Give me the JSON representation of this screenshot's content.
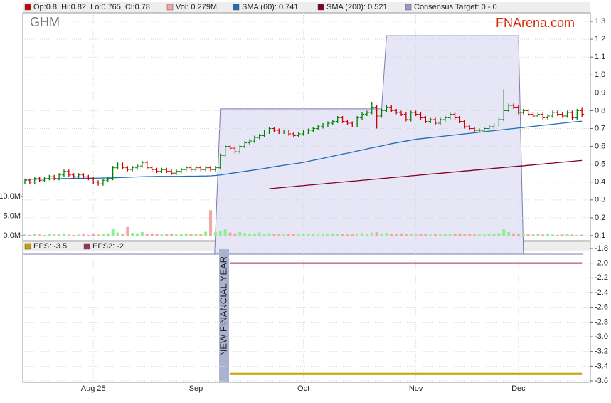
{
  "chart_data": {
    "type": "ohlc",
    "title": "GHM",
    "watermark": "FNArena.com",
    "legend_ohlc": "Op:0.8, Hi:0.82, Lo:0.765, Cl:0.78",
    "up_color": "#008000",
    "down_color": "#cc0000",
    "grid": true,
    "ylim": [
      0.072,
      1.348
    ],
    "yticks": [
      0.1,
      0.2,
      0.3,
      0.4,
      0.5,
      0.6,
      0.7,
      0.8,
      0.9,
      {
        "value": 1,
        "label": "1.0"
      },
      1.1,
      1.2,
      1.3
    ],
    "categories": [
      null,
      null,
      null,
      null,
      null,
      null,
      null,
      null,
      null,
      null,
      null,
      null,
      null,
      null,
      "Aug 25",
      null,
      null,
      null,
      null,
      null,
      null,
      null,
      null,
      null,
      null,
      null,
      null,
      null,
      null,
      null,
      null,
      null,
      null,
      null,
      null,
      "Sep",
      null,
      null,
      null,
      null,
      null,
      null,
      null,
      null,
      null,
      null,
      null,
      null,
      null,
      null,
      null,
      null,
      null,
      null,
      null,
      null,
      null,
      "Oct",
      null,
      null,
      null,
      null,
      null,
      null,
      null,
      null,
      null,
      null,
      null,
      null,
      null,
      null,
      null,
      null,
      null,
      null,
      null,
      null,
      null,
      null,
      "Nov",
      null,
      null,
      null,
      null,
      null,
      null,
      null,
      null,
      null,
      null,
      null,
      null,
      null,
      null,
      null,
      null,
      null,
      null,
      null,
      null,
      "Dec",
      null,
      null,
      null,
      null,
      null,
      null,
      null,
      null,
      null,
      null,
      null,
      null,
      null
    ],
    "open": [
      0.4,
      0.41,
      0.4,
      0.42,
      0.41,
      0.42,
      0.43,
      0.42,
      0.44,
      0.46,
      0.44,
      0.43,
      0.44,
      0.43,
      0.42,
      0.4,
      0.39,
      0.41,
      0.42,
      0.48,
      0.5,
      0.48,
      0.47,
      0.48,
      0.49,
      0.51,
      0.48,
      0.47,
      0.46,
      0.47,
      0.46,
      0.45,
      0.46,
      0.47,
      0.48,
      0.47,
      0.48,
      0.47,
      0.48,
      0.47,
      0.48,
      0.55,
      0.6,
      0.59,
      0.57,
      0.6,
      0.62,
      0.63,
      0.65,
      0.66,
      0.68,
      0.7,
      0.69,
      0.68,
      0.68,
      0.67,
      0.66,
      0.67,
      0.68,
      0.69,
      0.7,
      0.71,
      0.72,
      0.73,
      0.74,
      0.76,
      0.74,
      0.73,
      0.72,
      0.76,
      0.78,
      0.79,
      0.82,
      0.77,
      0.8,
      0.82,
      0.8,
      0.79,
      0.78,
      0.75,
      0.79,
      0.78,
      0.76,
      0.74,
      0.75,
      0.73,
      0.75,
      0.76,
      0.78,
      0.76,
      0.74,
      0.71,
      0.7,
      0.69,
      0.69,
      0.7,
      0.71,
      0.72,
      0.75,
      0.8,
      0.83,
      0.82,
      0.79,
      0.8,
      0.78,
      0.77,
      0.78,
      0.76,
      0.77,
      0.79,
      0.78,
      0.77,
      0.79,
      0.76,
      0.8
    ],
    "high": [
      0.42,
      0.42,
      0.43,
      0.43,
      0.43,
      0.44,
      0.44,
      0.45,
      0.47,
      0.47,
      0.45,
      0.45,
      0.45,
      0.44,
      0.43,
      0.41,
      0.42,
      0.43,
      0.49,
      0.51,
      0.51,
      0.49,
      0.49,
      0.5,
      0.52,
      0.52,
      0.49,
      0.48,
      0.48,
      0.48,
      0.47,
      0.47,
      0.48,
      0.49,
      0.49,
      0.49,
      0.49,
      0.49,
      0.49,
      0.49,
      0.56,
      0.61,
      0.61,
      0.6,
      0.61,
      0.63,
      0.64,
      0.66,
      0.67,
      0.69,
      0.71,
      0.71,
      0.7,
      0.69,
      0.69,
      0.68,
      0.68,
      0.69,
      0.7,
      0.71,
      0.72,
      0.73,
      0.74,
      0.75,
      0.77,
      0.77,
      0.75,
      0.74,
      0.77,
      0.79,
      0.8,
      0.85,
      0.83,
      0.81,
      0.83,
      0.83,
      0.81,
      0.8,
      0.79,
      0.8,
      0.8,
      0.79,
      0.77,
      0.76,
      0.76,
      0.76,
      0.77,
      0.79,
      0.79,
      0.77,
      0.75,
      0.72,
      0.71,
      0.7,
      0.71,
      0.72,
      0.73,
      0.76,
      0.92,
      0.84,
      0.84,
      0.83,
      0.81,
      0.81,
      0.79,
      0.79,
      0.79,
      0.78,
      0.8,
      0.8,
      0.79,
      0.8,
      0.8,
      0.81,
      0.82
    ],
    "low": [
      0.39,
      0.39,
      0.39,
      0.4,
      0.4,
      0.41,
      0.41,
      0.41,
      0.43,
      0.43,
      0.42,
      0.42,
      0.42,
      0.41,
      0.39,
      0.38,
      0.38,
      0.4,
      0.41,
      0.47,
      0.47,
      0.46,
      0.46,
      0.47,
      0.48,
      0.47,
      0.46,
      0.45,
      0.45,
      0.45,
      0.44,
      0.44,
      0.45,
      0.46,
      0.46,
      0.46,
      0.46,
      0.46,
      0.46,
      0.46,
      0.47,
      0.54,
      0.58,
      0.56,
      0.56,
      0.59,
      0.61,
      0.62,
      0.64,
      0.65,
      0.67,
      0.68,
      0.67,
      0.67,
      0.66,
      0.65,
      0.65,
      0.66,
      0.67,
      0.68,
      0.69,
      0.7,
      0.71,
      0.72,
      0.73,
      0.73,
      0.72,
      0.71,
      0.71,
      0.75,
      0.77,
      0.78,
      0.7,
      0.76,
      0.79,
      0.79,
      0.78,
      0.77,
      0.74,
      0.74,
      0.77,
      0.75,
      0.73,
      0.73,
      0.72,
      0.72,
      0.74,
      0.75,
      0.75,
      0.73,
      0.7,
      0.69,
      0.68,
      0.68,
      0.68,
      0.69,
      0.7,
      0.71,
      0.74,
      0.79,
      0.81,
      0.78,
      0.78,
      0.77,
      0.76,
      0.76,
      0.75,
      0.75,
      0.76,
      0.77,
      0.76,
      0.76,
      0.75,
      0.75,
      0.765
    ],
    "close": [
      0.41,
      0.4,
      0.42,
      0.41,
      0.42,
      0.43,
      0.42,
      0.44,
      0.46,
      0.44,
      0.43,
      0.44,
      0.43,
      0.42,
      0.4,
      0.39,
      0.41,
      0.42,
      0.48,
      0.5,
      0.48,
      0.47,
      0.48,
      0.49,
      0.51,
      0.48,
      0.47,
      0.46,
      0.47,
      0.46,
      0.45,
      0.46,
      0.47,
      0.48,
      0.47,
      0.48,
      0.47,
      0.48,
      0.47,
      0.48,
      0.55,
      0.6,
      0.59,
      0.57,
      0.6,
      0.62,
      0.63,
      0.65,
      0.66,
      0.68,
      0.7,
      0.69,
      0.68,
      0.68,
      0.67,
      0.66,
      0.67,
      0.68,
      0.69,
      0.7,
      0.71,
      0.72,
      0.73,
      0.74,
      0.76,
      0.74,
      0.73,
      0.72,
      0.76,
      0.78,
      0.79,
      0.82,
      0.77,
      0.8,
      0.82,
      0.8,
      0.79,
      0.78,
      0.75,
      0.79,
      0.78,
      0.76,
      0.74,
      0.75,
      0.73,
      0.75,
      0.76,
      0.78,
      0.76,
      0.74,
      0.71,
      0.7,
      0.69,
      0.69,
      0.7,
      0.71,
      0.72,
      0.75,
      0.8,
      0.83,
      0.82,
      0.79,
      0.8,
      0.78,
      0.77,
      0.78,
      0.76,
      0.77,
      0.79,
      0.78,
      0.77,
      0.79,
      0.76,
      0.8,
      0.78
    ],
    "volume": {
      "name": "Vol: 0.279M",
      "up_color": "#90ee90",
      "down_color": "#f4a6a6",
      "legend_color": "#f4a6a6",
      "ylim": [
        0,
        10
      ],
      "yticks": [
        {
          "value": 0,
          "label": "0.0M"
        },
        {
          "value": 5,
          "label": "5.0M"
        },
        {
          "value": 10,
          "label": "10.0M"
        }
      ],
      "values": [
        0.3,
        0.2,
        0.4,
        0.3,
        0.2,
        0.5,
        0.3,
        0.4,
        0.6,
        0.3,
        0.2,
        0.3,
        0.4,
        0.2,
        0.5,
        0.3,
        0.4,
        0.6,
        1.8,
        0.8,
        0.5,
        2.2,
        0.7,
        0.6,
        0.9,
        0.5,
        0.6,
        0.4,
        0.3,
        0.5,
        0.4,
        0.3,
        0.4,
        0.6,
        0.5,
        0.4,
        0.5,
        1.0,
        6.5,
        0.9,
        1.3,
        1.6,
        0.8,
        0.6,
        0.9,
        0.7,
        0.5,
        0.6,
        0.8,
        0.5,
        0.6,
        0.4,
        0.5,
        0.3,
        0.4,
        0.5,
        0.3,
        0.4,
        0.5,
        0.4,
        0.3,
        0.5,
        0.4,
        0.6,
        0.5,
        0.4,
        0.3,
        0.5,
        0.6,
        0.7,
        0.5,
        0.8,
        0.9,
        0.6,
        0.7,
        0.5,
        0.4,
        0.6,
        0.5,
        0.4,
        0.3,
        0.5,
        0.4,
        0.3,
        0.4,
        0.3,
        0.4,
        0.5,
        0.4,
        0.6,
        0.5,
        0.4,
        0.3,
        0.4,
        0.3,
        0.4,
        0.5,
        0.7,
        1.8,
        0.9,
        0.6,
        0.5,
        0.4,
        0.5,
        0.3,
        0.4,
        0.3,
        0.4,
        0.3,
        0.2,
        0.3,
        0.4,
        0.3,
        0.2,
        0.279
      ]
    },
    "sma": [
      {
        "name": "SMA (60): 0.741",
        "color": "#1f6eb4",
        "values": [
          0.415,
          0.416,
          0.416,
          0.417,
          0.417,
          0.418,
          0.418,
          0.419,
          0.42,
          0.42,
          0.421,
          0.421,
          0.421,
          0.422,
          0.422,
          0.422,
          0.423,
          0.423,
          0.424,
          0.425,
          0.426,
          0.427,
          0.428,
          0.429,
          0.43,
          0.431,
          0.431,
          0.432,
          0.432,
          0.432,
          0.432,
          0.432,
          0.432,
          0.433,
          0.433,
          0.433,
          0.434,
          0.434,
          0.435,
          0.437,
          0.44,
          0.444,
          0.448,
          0.452,
          0.456,
          0.46,
          0.464,
          0.468,
          0.472,
          0.476,
          0.481,
          0.486,
          0.49,
          0.494,
          0.498,
          0.502,
          0.506,
          0.51,
          0.516,
          0.522,
          0.527,
          0.533,
          0.539,
          0.545,
          0.551,
          0.557,
          0.562,
          0.568,
          0.574,
          0.58,
          0.586,
          0.592,
          0.597,
          0.603,
          0.609,
          0.615,
          0.62,
          0.625,
          0.63,
          0.635,
          0.64,
          0.643,
          0.646,
          0.649,
          0.652,
          0.655,
          0.658,
          0.661,
          0.664,
          0.667,
          0.67,
          0.673,
          0.676,
          0.679,
          0.682,
          0.685,
          0.688,
          0.691,
          0.694,
          0.697,
          0.7,
          0.703,
          0.706,
          0.709,
          0.712,
          0.715,
          0.718,
          0.721,
          0.724,
          0.727,
          0.73,
          0.733,
          0.736,
          0.739,
          0.741
        ]
      },
      {
        "name": "SMA (200): 0.521",
        "color": "#800020",
        "values": [
          null,
          null,
          null,
          null,
          null,
          null,
          null,
          null,
          null,
          null,
          null,
          null,
          null,
          null,
          null,
          null,
          null,
          null,
          null,
          null,
          null,
          null,
          null,
          null,
          null,
          null,
          null,
          null,
          null,
          null,
          null,
          null,
          null,
          null,
          null,
          null,
          null,
          null,
          null,
          null,
          null,
          null,
          null,
          null,
          null,
          null,
          null,
          null,
          null,
          null,
          0.363,
          0.365,
          0.368,
          0.37,
          0.373,
          0.375,
          0.378,
          0.38,
          0.383,
          0.385,
          0.388,
          0.39,
          0.393,
          0.395,
          0.398,
          0.4,
          0.403,
          0.405,
          0.407,
          0.41,
          0.412,
          0.415,
          0.417,
          0.42,
          0.422,
          0.425,
          0.427,
          0.43,
          0.432,
          0.435,
          0.437,
          0.44,
          0.442,
          0.445,
          0.447,
          0.449,
          0.452,
          0.454,
          0.457,
          0.459,
          0.462,
          0.464,
          0.467,
          0.469,
          0.472,
          0.474,
          0.477,
          0.479,
          0.482,
          0.484,
          0.487,
          0.489,
          0.491,
          0.494,
          0.496,
          0.499,
          0.501,
          0.504,
          0.506,
          0.509,
          0.511,
          0.514,
          0.516,
          0.519,
          0.521
        ]
      }
    ],
    "consensus": {
      "name": "Consensus Target: 0 - 0",
      "color": "#e6e6f7",
      "stroke": "#7b7bb0",
      "legend_color": "#9a9ac8",
      "values": [
        null,
        null,
        null,
        null,
        null,
        null,
        null,
        null,
        null,
        null,
        null,
        null,
        null,
        null,
        null,
        null,
        null,
        null,
        null,
        null,
        null,
        null,
        null,
        null,
        null,
        null,
        null,
        null,
        null,
        null,
        null,
        null,
        null,
        null,
        null,
        null,
        null,
        null,
        null,
        null,
        0.81,
        0.81,
        0.81,
        0.81,
        0.81,
        0.81,
        0.81,
        0.81,
        0.81,
        0.81,
        0.81,
        0.81,
        0.81,
        0.81,
        0.81,
        0.81,
        0.81,
        0.81,
        0.81,
        0.81,
        0.81,
        0.81,
        0.81,
        0.81,
        0.81,
        0.81,
        0.81,
        0.81,
        0.81,
        0.81,
        0.81,
        0.81,
        0.81,
        0.81,
        1.22,
        1.22,
        1.22,
        1.22,
        1.22,
        1.22,
        1.22,
        1.22,
        1.22,
        1.22,
        1.22,
        1.22,
        1.22,
        1.22,
        1.22,
        1.22,
        1.22,
        1.22,
        1.22,
        1.22,
        1.22,
        1.22,
        1.22,
        1.22,
        1.22,
        1.22,
        1.22,
        1.22,
        null,
        null,
        null,
        null,
        null,
        null,
        null,
        null,
        null,
        null,
        null,
        null,
        null
      ]
    },
    "lower": {
      "ylim": [
        -3.619,
        -1.713
      ],
      "yticks": [
        -1.8,
        {
          "value": -2,
          "label": "-2.0"
        },
        -2.2,
        -2.4,
        -2.6,
        -2.8,
        {
          "value": -3,
          "label": "-3.0"
        },
        -3.2,
        -3.4,
        -3.6
      ],
      "series": [
        {
          "name": "EPS: -3.5",
          "color": "#c8a000",
          "value": -3.5
        },
        {
          "name": "EPS2: -2",
          "color": "#993366",
          "value": -2
        }
      ],
      "annotation": "NEW FINANCIAL YEAR"
    }
  }
}
